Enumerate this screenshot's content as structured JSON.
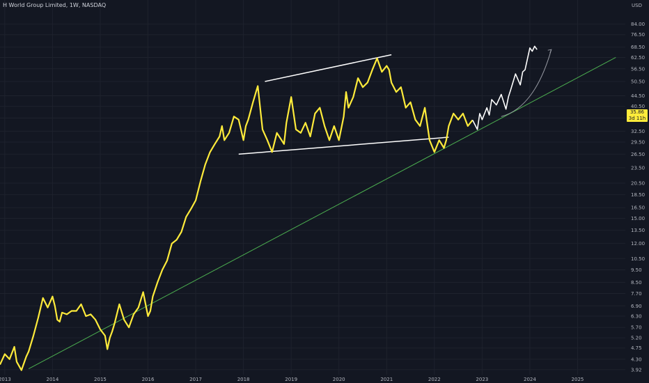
{
  "header": {
    "title": "H World Group Limited, 1W, NASDAQ",
    "currency": "USD"
  },
  "price_badge": {
    "price": "35.86",
    "countdown": "3d 11h"
  },
  "colors": {
    "background": "#131722",
    "price_line": "#ffeb3b",
    "projection_line": "#ffffff",
    "trendline": "#4caf50",
    "channel": "#ffffff",
    "axis_text": "#b2b5be"
  },
  "chart_data": {
    "type": "line",
    "title": "H World Group Limited, 1W, NASDAQ",
    "xlabel": "",
    "ylabel": "",
    "y_scale": "log",
    "ylim": [
      3.75,
      104
    ],
    "xlim": [
      2012.9,
      2026.0
    ],
    "y_ticks": [
      "84.00",
      "76.50",
      "68.50",
      "62.50",
      "56.50",
      "50.50",
      "44.50",
      "40.50",
      "36.50",
      "32.50",
      "29.50",
      "26.50",
      "23.50",
      "20.50",
      "18.50",
      "16.50",
      "15.00",
      "13.50",
      "12.00",
      "10.50",
      "9.50",
      "8.50",
      "7.70",
      "6.90",
      "6.30",
      "5.70",
      "5.20",
      "4.75",
      "4.30",
      "3.92"
    ],
    "x_ticks": [
      "2013",
      "2014",
      "2015",
      "2016",
      "2017",
      "2018",
      "2019",
      "2020",
      "2021",
      "2022",
      "2023",
      "2024",
      "2025"
    ],
    "grid": true,
    "legend": "none",
    "series": [
      {
        "style": "price",
        "x": [
          2012.9,
          2013.0,
          2013.1,
          2013.2,
          2013.25,
          2013.35,
          2013.45,
          2013.5,
          2013.6,
          2013.7,
          2013.8,
          2013.9,
          2014.0,
          2014.05,
          2014.1,
          2014.15,
          2014.2,
          2014.3,
          2014.4,
          2014.5,
          2014.6,
          2014.7,
          2014.8,
          2014.9,
          2015.0,
          2015.1,
          2015.15,
          2015.2,
          2015.25,
          2015.3,
          2015.4,
          2015.5,
          2015.6,
          2015.7,
          2015.8,
          2015.9,
          2016.0,
          2016.05,
          2016.1,
          2016.2,
          2016.3,
          2016.4,
          2016.5,
          2016.6,
          2016.7,
          2016.8,
          2016.9,
          2017.0,
          2017.1,
          2017.2,
          2017.3,
          2017.4,
          2017.5,
          2017.55,
          2017.6,
          2017.7,
          2017.8,
          2017.9,
          2018.0,
          2018.05,
          2018.1,
          2018.2,
          2018.3,
          2018.4,
          2018.5,
          2018.6,
          2018.7,
          2018.8,
          2018.85,
          2018.9,
          2019.0,
          2019.1,
          2019.2,
          2019.3,
          2019.4,
          2019.5,
          2019.6,
          2019.7,
          2019.8,
          2019.9,
          2020.0,
          2020.1,
          2020.15,
          2020.2,
          2020.3,
          2020.4,
          2020.5,
          2020.6,
          2020.7,
          2020.8,
          2020.9,
          2021.0,
          2021.05,
          2021.1,
          2021.2,
          2021.3,
          2021.4,
          2021.5,
          2021.6,
          2021.7,
          2021.8,
          2021.9,
          2022.0,
          2022.1,
          2022.2,
          2022.25,
          2022.3,
          2022.4,
          2022.5,
          2022.6,
          2022.7,
          2022.8
        ],
        "y": [
          4.1,
          4.5,
          4.3,
          4.8,
          4.2,
          3.9,
          4.4,
          4.6,
          5.3,
          6.2,
          7.4,
          6.8,
          7.5,
          6.9,
          6.1,
          6.0,
          6.5,
          6.4,
          6.6,
          6.6,
          7.0,
          6.3,
          6.4,
          6.1,
          5.6,
          5.3,
          4.7,
          5.2,
          5.5,
          5.9,
          7.0,
          6.1,
          5.7,
          6.4,
          6.8,
          7.8,
          6.3,
          6.6,
          7.5,
          8.5,
          9.5,
          10.3,
          12.0,
          12.4,
          13.3,
          15.2,
          16.3,
          17.6,
          20.8,
          24.2,
          27.0,
          29.0,
          31.0,
          34.0,
          30.0,
          32.0,
          37.0,
          36.0,
          30.0,
          34.0,
          36.0,
          42.0,
          48.5,
          33.0,
          30.0,
          27.0,
          32.0,
          30.0,
          29.0,
          35.0,
          44.0,
          33.0,
          32.0,
          35.0,
          31.0,
          38.0,
          40.0,
          34.0,
          30.0,
          34.0,
          30.0,
          37.0,
          46.0,
          40.0,
          44.0,
          52.0,
          48.0,
          50.0,
          56.0,
          62.0,
          55.0,
          58.0,
          56.0,
          50.0,
          46.0,
          48.0,
          40.0,
          42.0,
          36.0,
          34.0,
          40.0,
          30.0,
          27.0,
          30.0,
          28.0,
          30.0,
          34.0,
          38.0,
          36.0,
          38.0,
          34.0,
          35.86
        ]
      },
      {
        "style": "projection",
        "x": [
          2022.8,
          2022.9,
          2022.95,
          2023.0,
          2023.1,
          2023.15,
          2023.2,
          2023.3,
          2023.4,
          2023.5,
          2023.55,
          2023.6,
          2023.7,
          2023.8,
          2023.85,
          2023.9,
          2024.0,
          2024.05,
          2024.1,
          2024.15
        ],
        "y": [
          35.86,
          33.0,
          38.0,
          36.0,
          40.0,
          37.5,
          43.0,
          41.0,
          45.0,
          39.5,
          44.0,
          47.0,
          54.0,
          49.0,
          55.0,
          56.0,
          68.0,
          66.0,
          69.0,
          67.0
        ]
      }
    ],
    "annotations": [
      {
        "type": "trendline",
        "x": [
          2013.5,
          2025.8
        ],
        "y": [
          3.95,
          62.5
        ]
      },
      {
        "type": "channel_top",
        "x": [
          2018.45,
          2021.1
        ],
        "y": [
          50.5,
          64.0
        ]
      },
      {
        "type": "channel_bottom",
        "x": [
          2017.9,
          2022.3
        ],
        "y": [
          26.5,
          30.8
        ]
      },
      {
        "type": "curved_arrow",
        "x": [
          2023.4,
          2024.1,
          2024.45
        ],
        "y": [
          37.0,
          40.0,
          67.0
        ]
      }
    ]
  }
}
